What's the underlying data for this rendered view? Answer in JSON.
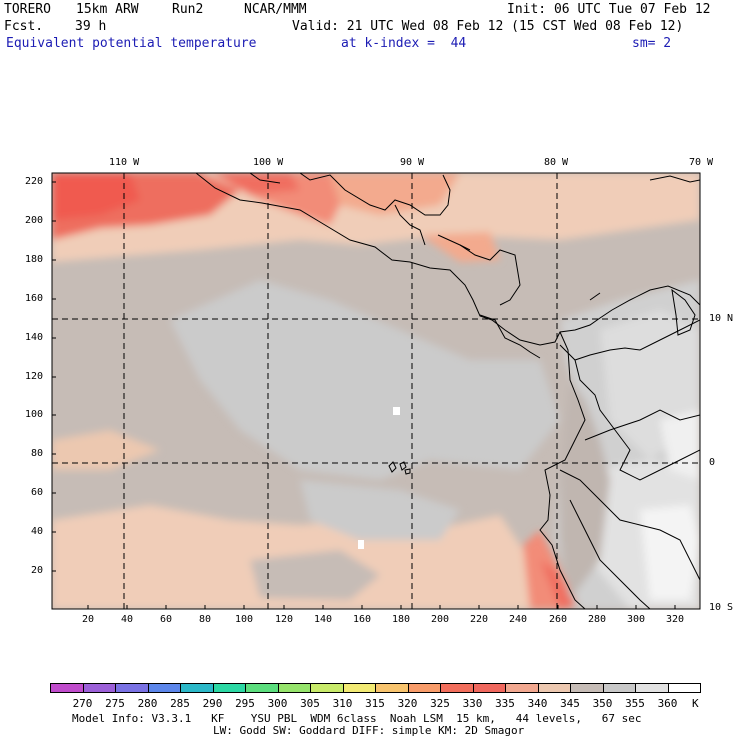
{
  "header": {
    "model": "TORERO",
    "resolution": "15km ARW",
    "run": "Run2",
    "org": "NCAR/MMM",
    "init": "Init: 06 UTC Tue 07 Feb 12",
    "fcst_label": "Fcst.",
    "fcst_value": "39 h",
    "valid": "Valid: 21 UTC Wed 08 Feb 12 (15 CST Wed 08 Feb 12)",
    "field": "Equivalent potential temperature",
    "level": "at k-index =  44",
    "smoothing": "sm= 2"
  },
  "axes": {
    "x_ticks": [
      "20",
      "40",
      "60",
      "80",
      "100",
      "120",
      "140",
      "160",
      "180",
      "200",
      "220",
      "240",
      "260",
      "280",
      "300",
      "320"
    ],
    "y_ticks": [
      "20",
      "40",
      "60",
      "80",
      "100",
      "120",
      "140",
      "160",
      "180",
      "200",
      "220"
    ],
    "lon_labels": [
      "110 W",
      "100 W",
      "90 W",
      "80 W",
      "70 W"
    ],
    "lat_labels": [
      "10 N",
      "0",
      "10 S"
    ]
  },
  "colorbar": {
    "labels": [
      "270",
      "275",
      "280",
      "285",
      "290",
      "295",
      "300",
      "305",
      "310",
      "315",
      "320",
      "325",
      "330",
      "335",
      "340",
      "345",
      "350",
      "355",
      "360"
    ],
    "unit": "K",
    "colors": [
      "#c04ccc",
      "#9c60d8",
      "#7a72e4",
      "#5c86ea",
      "#2cb8c8",
      "#2cd8a4",
      "#5cde7e",
      "#96e46c",
      "#c8ea6a",
      "#f2ea74",
      "#f8c46e",
      "#f89c6a",
      "#f26e5c",
      "#f0685e",
      "#f2a890",
      "#ecc8b0",
      "#c6bcb6",
      "#c8c8c8",
      "#e2e2e2",
      "#ffffff"
    ]
  },
  "footer": {
    "line1": "Model Info: V3.3.1   KF    YSU PBL  WDM 6class  Noah LSM  15 km,   44 levels,   67 sec",
    "line2": "LW: Godd SW: Goddard DIFF: simple KM: 2D Smagor"
  }
}
